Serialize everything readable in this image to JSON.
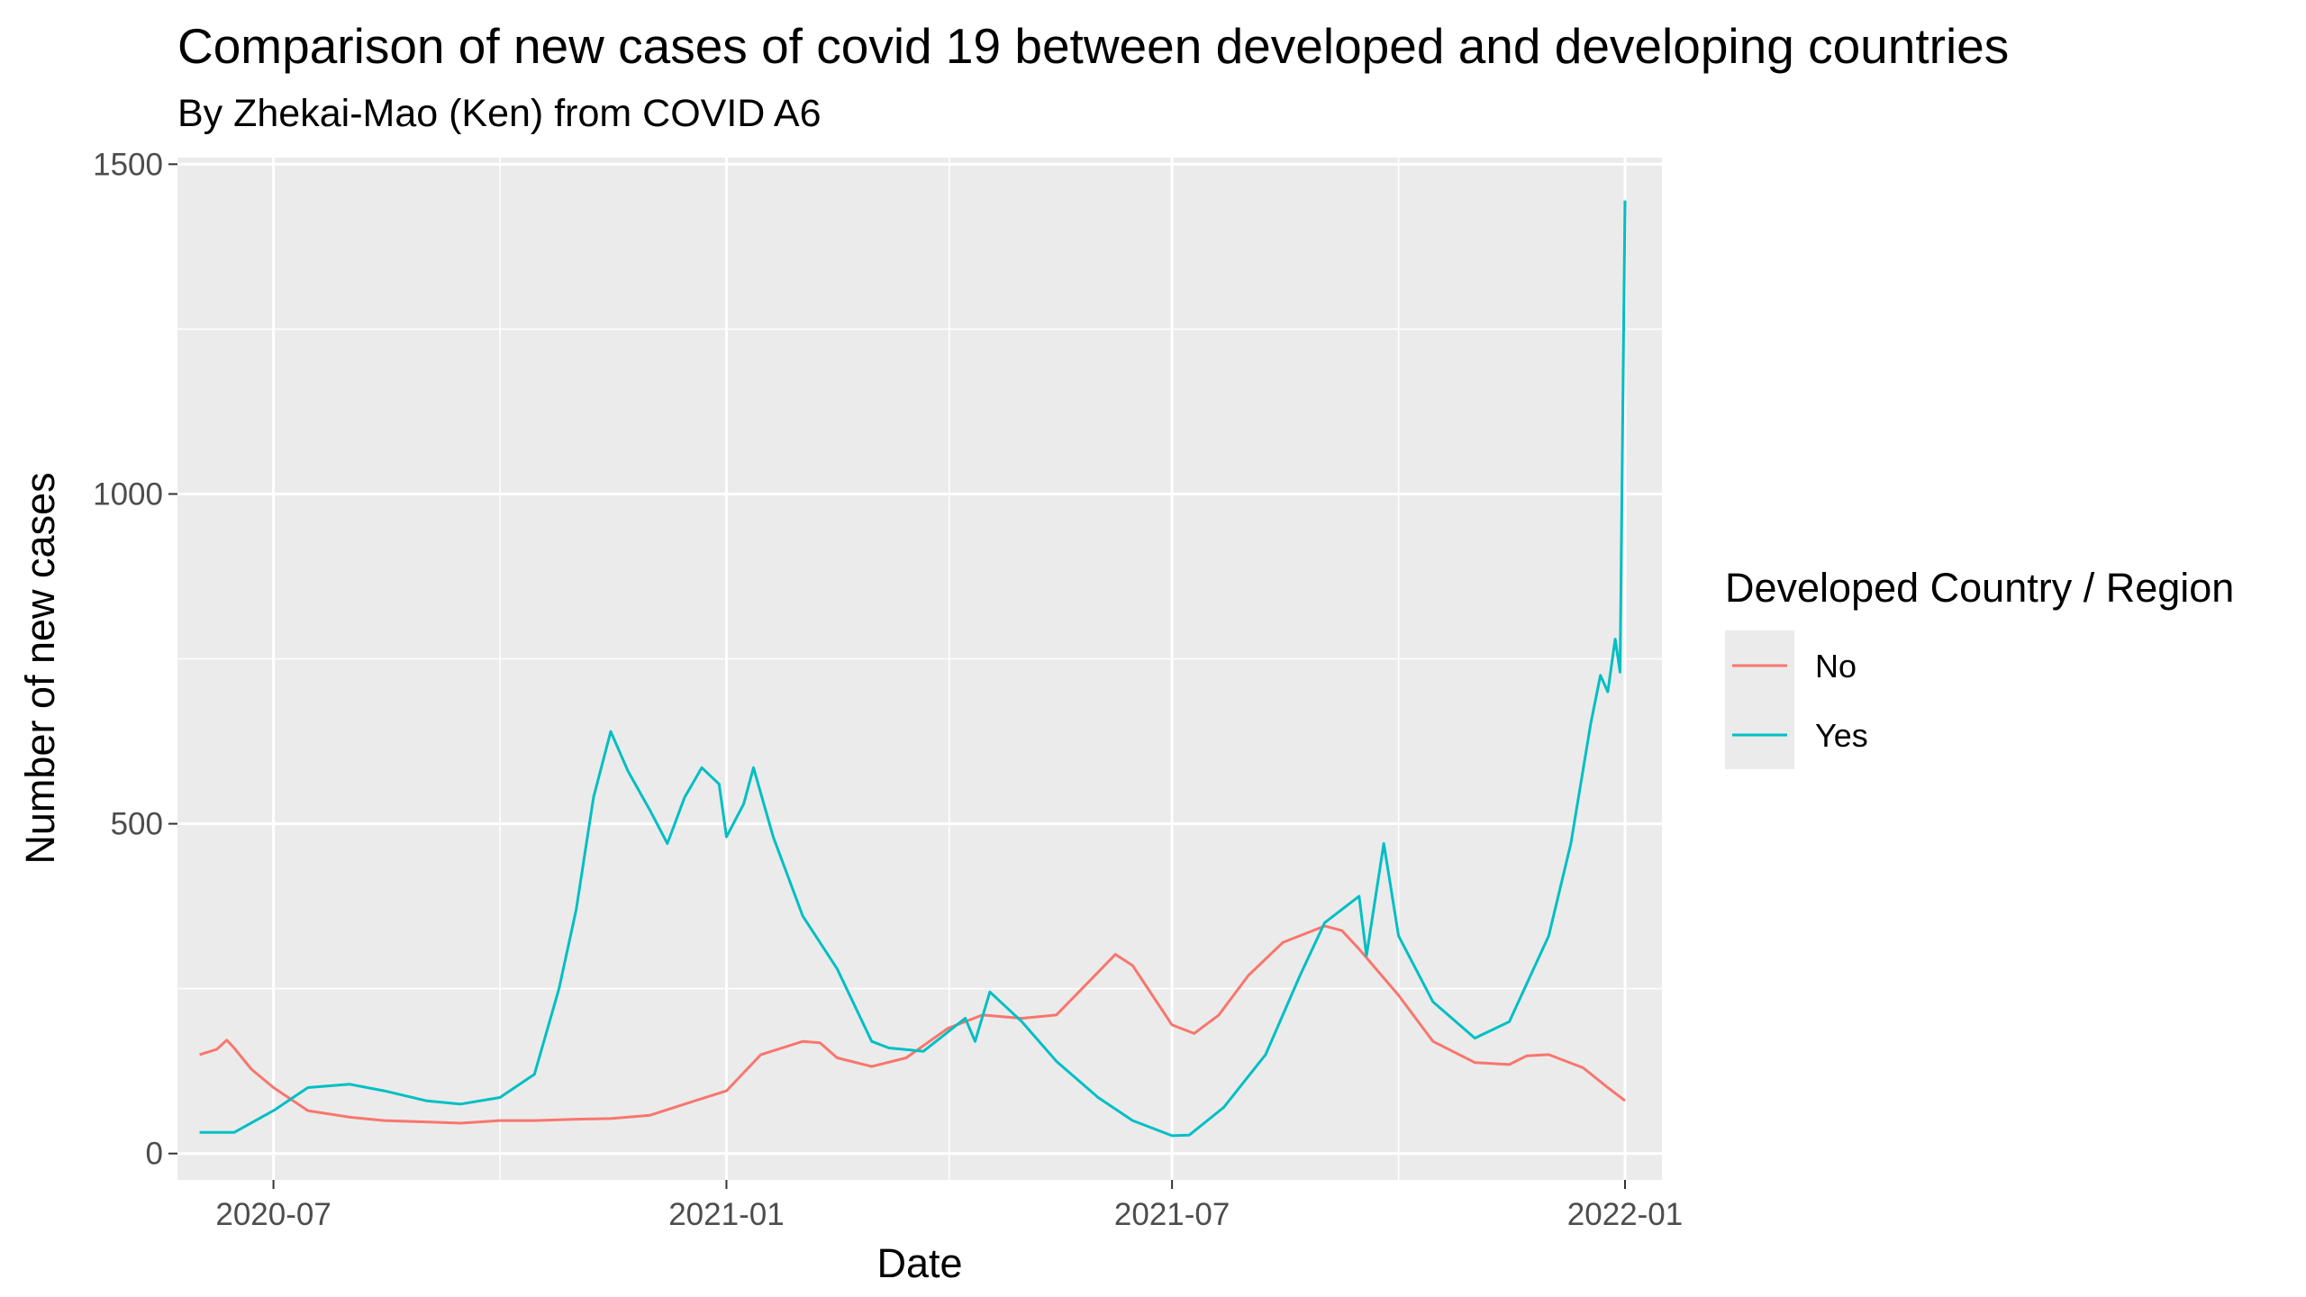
{
  "chart_data": {
    "type": "line",
    "title": "Comparison of new cases of covid 19 between developed and developing countries",
    "subtitle": "By Zhekai-Mao (Ken) from COVID A6",
    "xlabel": "Date",
    "ylabel": "Number of new cases",
    "x_ticks": [
      "2020-07",
      "2021-01",
      "2021-07",
      "2022-01"
    ],
    "y_ticks": [
      0,
      500,
      1000,
      1500
    ],
    "xlim": [
      "2020-05-23",
      "2022-01-16"
    ],
    "ylim": [
      -40,
      1510
    ],
    "grid": true,
    "legend": {
      "title": "Developed Country / Region",
      "position": "right"
    },
    "series": [
      {
        "name": "No",
        "color": "#F8766D",
        "points": [
          [
            "2020-06-01",
            150
          ],
          [
            "2020-06-08",
            158
          ],
          [
            "2020-06-12",
            172
          ],
          [
            "2020-06-15",
            160
          ],
          [
            "2020-06-22",
            128
          ],
          [
            "2020-07-01",
            100
          ],
          [
            "2020-07-15",
            65
          ],
          [
            "2020-08-01",
            55
          ],
          [
            "2020-08-15",
            50
          ],
          [
            "2020-09-01",
            48
          ],
          [
            "2020-09-15",
            46
          ],
          [
            "2020-10-01",
            50
          ],
          [
            "2020-10-15",
            50
          ],
          [
            "2020-11-01",
            52
          ],
          [
            "2020-11-15",
            53
          ],
          [
            "2020-12-01",
            58
          ],
          [
            "2020-12-15",
            75
          ],
          [
            "2021-01-01",
            95
          ],
          [
            "2021-01-15",
            150
          ],
          [
            "2021-02-01",
            170
          ],
          [
            "2021-02-08",
            168
          ],
          [
            "2021-02-15",
            145
          ],
          [
            "2021-03-01",
            132
          ],
          [
            "2021-03-15",
            145
          ],
          [
            "2021-04-01",
            190
          ],
          [
            "2021-04-15",
            210
          ],
          [
            "2021-05-01",
            205
          ],
          [
            "2021-05-15",
            210
          ],
          [
            "2021-06-01",
            275
          ],
          [
            "2021-06-08",
            302
          ],
          [
            "2021-06-15",
            285
          ],
          [
            "2021-07-01",
            195
          ],
          [
            "2021-07-10",
            182
          ],
          [
            "2021-07-20",
            210
          ],
          [
            "2021-08-01",
            270
          ],
          [
            "2021-08-15",
            320
          ],
          [
            "2021-09-01",
            345
          ],
          [
            "2021-09-08",
            338
          ],
          [
            "2021-09-15",
            310
          ],
          [
            "2021-10-01",
            240
          ],
          [
            "2021-10-15",
            170
          ],
          [
            "2021-11-01",
            138
          ],
          [
            "2021-11-15",
            135
          ],
          [
            "2021-11-22",
            148
          ],
          [
            "2021-12-01",
            150
          ],
          [
            "2021-12-15",
            130
          ],
          [
            "2021-12-25",
            100
          ],
          [
            "2022-01-01",
            80
          ]
        ]
      },
      {
        "name": "Yes",
        "color": "#00BFC4",
        "points": [
          [
            "2020-06-01",
            32
          ],
          [
            "2020-06-15",
            32
          ],
          [
            "2020-07-01",
            65
          ],
          [
            "2020-07-15",
            100
          ],
          [
            "2020-08-01",
            105
          ],
          [
            "2020-08-15",
            95
          ],
          [
            "2020-09-01",
            80
          ],
          [
            "2020-09-15",
            75
          ],
          [
            "2020-10-01",
            85
          ],
          [
            "2020-10-15",
            120
          ],
          [
            "2020-10-25",
            250
          ],
          [
            "2020-11-01",
            370
          ],
          [
            "2020-11-08",
            540
          ],
          [
            "2020-11-15",
            640
          ],
          [
            "2020-11-22",
            580
          ],
          [
            "2020-12-01",
            520
          ],
          [
            "2020-12-08",
            470
          ],
          [
            "2020-12-15",
            540
          ],
          [
            "2020-12-22",
            585
          ],
          [
            "2020-12-29",
            560
          ],
          [
            "2021-01-01",
            480
          ],
          [
            "2021-01-08",
            530
          ],
          [
            "2021-01-12",
            585
          ],
          [
            "2021-01-20",
            480
          ],
          [
            "2021-02-01",
            360
          ],
          [
            "2021-02-15",
            280
          ],
          [
            "2021-03-01",
            170
          ],
          [
            "2021-03-08",
            160
          ],
          [
            "2021-03-22",
            155
          ],
          [
            "2021-04-08",
            205
          ],
          [
            "2021-04-12",
            170
          ],
          [
            "2021-04-18",
            245
          ],
          [
            "2021-05-01",
            200
          ],
          [
            "2021-05-15",
            140
          ],
          [
            "2021-06-01",
            85
          ],
          [
            "2021-06-15",
            50
          ],
          [
            "2021-07-01",
            27
          ],
          [
            "2021-07-08",
            28
          ],
          [
            "2021-07-22",
            70
          ],
          [
            "2021-08-08",
            150
          ],
          [
            "2021-08-22",
            270
          ],
          [
            "2021-09-01",
            350
          ],
          [
            "2021-09-15",
            390
          ],
          [
            "2021-09-18",
            300
          ],
          [
            "2021-09-25",
            470
          ],
          [
            "2021-10-01",
            330
          ],
          [
            "2021-10-15",
            230
          ],
          [
            "2021-11-01",
            175
          ],
          [
            "2021-11-15",
            200
          ],
          [
            "2021-12-01",
            330
          ],
          [
            "2021-12-10",
            470
          ],
          [
            "2021-12-18",
            650
          ],
          [
            "2021-12-22",
            725
          ],
          [
            "2021-12-25",
            700
          ],
          [
            "2021-12-28",
            780
          ],
          [
            "2021-12-30",
            730
          ],
          [
            "2022-01-01",
            1445
          ]
        ]
      }
    ]
  }
}
